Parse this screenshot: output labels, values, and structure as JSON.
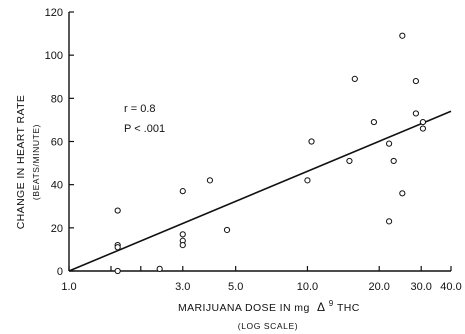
{
  "chart_data": {
    "type": "scatter",
    "x_scale": "log",
    "xlim": [
      1.0,
      40.0
    ],
    "ylim": [
      0,
      120
    ],
    "x_ticks": [
      1.0,
      1.5,
      2.0,
      3.0,
      5.0,
      10.0,
      20.0,
      30.0,
      40.0
    ],
    "x_tick_labels": [
      "1.0",
      "",
      "",
      "3.0",
      "5.0",
      "10.0",
      "20.0",
      "30.0",
      "40.0"
    ],
    "y_ticks": [
      0,
      20,
      40,
      60,
      80,
      100,
      120
    ],
    "y_tick_labels": [
      "0",
      "20",
      "40",
      "60",
      "80",
      "100",
      "120"
    ],
    "xlabel": "MARIJUANA DOSE IN mg",
    "xlabel_symbol": "Δ",
    "xlabel_superscript": "9",
    "xlabel_suffix": "THC",
    "xlabel_sub": "(LOG SCALE)",
    "ylabel": "CHANGE IN HEART RATE",
    "ylabel_sub": "(BEATS/MINUTE)",
    "grid": false,
    "annotations": [
      "r = 0.8",
      "P < .001"
    ],
    "points": [
      {
        "x": 1.6,
        "y": 28
      },
      {
        "x": 1.6,
        "y": 12
      },
      {
        "x": 1.6,
        "y": 11
      },
      {
        "x": 1.6,
        "y": 0
      },
      {
        "x": 2.4,
        "y": 1
      },
      {
        "x": 3.0,
        "y": 37
      },
      {
        "x": 3.0,
        "y": 17
      },
      {
        "x": 3.0,
        "y": 14
      },
      {
        "x": 3.0,
        "y": 12
      },
      {
        "x": 3.9,
        "y": 42
      },
      {
        "x": 4.6,
        "y": 19
      },
      {
        "x": 10.0,
        "y": 42
      },
      {
        "x": 10.4,
        "y": 60
      },
      {
        "x": 15.0,
        "y": 51
      },
      {
        "x": 15.8,
        "y": 89
      },
      {
        "x": 19.0,
        "y": 69
      },
      {
        "x": 22.0,
        "y": 59
      },
      {
        "x": 22.0,
        "y": 23
      },
      {
        "x": 23.0,
        "y": 51
      },
      {
        "x": 25.0,
        "y": 109
      },
      {
        "x": 25.0,
        "y": 36
      },
      {
        "x": 28.5,
        "y": 88
      },
      {
        "x": 28.5,
        "y": 73
      },
      {
        "x": 30.5,
        "y": 69
      },
      {
        "x": 30.5,
        "y": 66
      }
    ],
    "fit_line": {
      "x": [
        1.0,
        40.0
      ],
      "y": [
        0,
        74
      ]
    }
  }
}
